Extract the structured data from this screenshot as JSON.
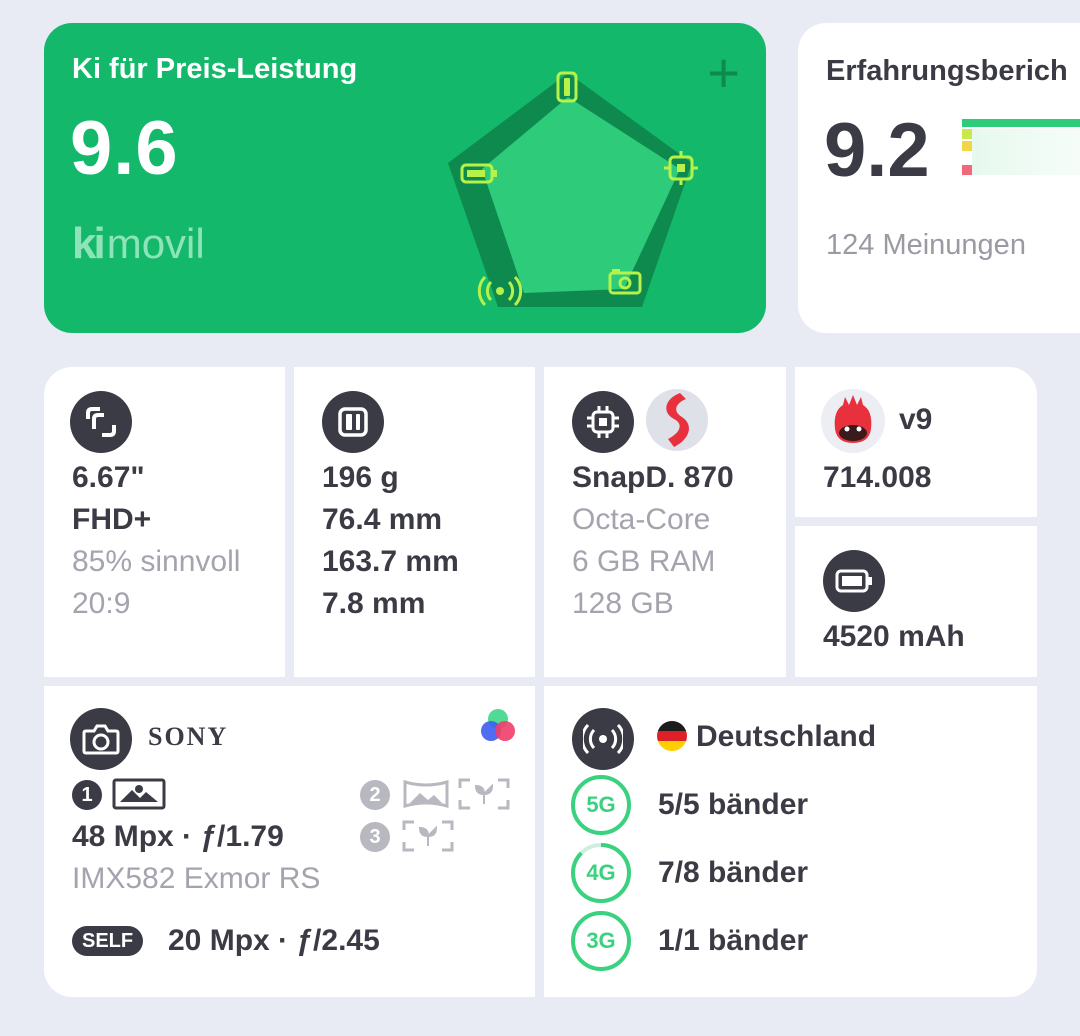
{
  "score": {
    "title": "Ki für Preis-Leistung",
    "value": "9.6",
    "brand_mark": "ki",
    "brand_text": "movil",
    "add_icon": "plus-icon",
    "radar_icons": [
      "phone-size-icon",
      "processor-icon",
      "camera-icon",
      "antenna-icon",
      "battery-icon"
    ]
  },
  "review": {
    "title": "Erfahrungsberich",
    "value": "9.2",
    "count": "124 Meinungen"
  },
  "screen": {
    "icon": "screen-icon",
    "size": "6.67\"",
    "resolution": "FHD+",
    "ratio_useful": "85% sinnvoll",
    "aspect": "20:9"
  },
  "dimensions": {
    "icon": "phone-size-icon",
    "weight": "196 g",
    "width": "76.4 mm",
    "height": "163.7 mm",
    "depth": "7.8 mm"
  },
  "chip": {
    "icon": "processor-icon",
    "brand_icon": "snapdragon-logo-icon",
    "name": "SnapD. 870",
    "cores": "Octa-Core",
    "ram": "6 GB RAM",
    "storage": "128 GB"
  },
  "antutu": {
    "icon": "antutu-logo-icon",
    "version": "v9",
    "score": "714.008"
  },
  "battery": {
    "icon": "battery-icon",
    "capacity": "4520 mAh"
  },
  "camera": {
    "icon": "camera-icon",
    "sensor_brand": "SONY",
    "color_icon": "color-filter-icon",
    "main_index": "1",
    "second_index": "2",
    "third_index": "3",
    "main_spec": "48 Mpx · ƒ/1.79",
    "sensor": "IMX582 Exmor RS",
    "selfie_badge": "SELF",
    "selfie_spec": "20 Mpx · ƒ/2.45"
  },
  "network": {
    "icon": "antenna-icon",
    "country": "Deutschland",
    "flag_icon": "germany-flag-icon",
    "bands": [
      {
        "label": "5G",
        "text": "5/5 bänder",
        "fraction": 1.0
      },
      {
        "label": "4G",
        "text": "7/8 bänder",
        "fraction": 0.875
      },
      {
        "label": "3G",
        "text": "1/1 bänder",
        "fraction": 1.0
      }
    ]
  },
  "colors": {
    "green": "#13b86b",
    "dark": "#3b3b45",
    "muted": "#a4a4ae",
    "band_green": "#3ad27f",
    "background": "#e8ebf3"
  }
}
